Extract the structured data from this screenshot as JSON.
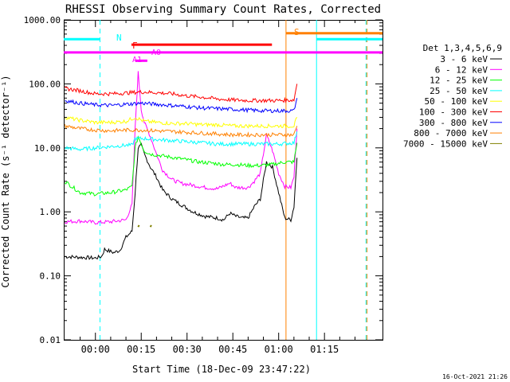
{
  "chart_data": {
    "type": "line",
    "title": "RHESSI Observing Summary Count Rates, Corrected",
    "xlabel": "Start Time (18-Dec-09 23:47:22)",
    "ylabel": "Corrected Count Rate (s⁻¹ detector⁻¹)",
    "scale_y": "log",
    "ylim": [
      0.01,
      1000
    ],
    "xlim_min": [
      -10.37,
      94
    ],
    "x_ticks": [
      {
        "m": 0,
        "label": "00:00"
      },
      {
        "m": 15,
        "label": "00:15"
      },
      {
        "m": 30,
        "label": "00:30"
      },
      {
        "m": 45,
        "label": "00:45"
      },
      {
        "m": 60,
        "label": "01:00"
      },
      {
        "m": 75,
        "label": "01:15"
      }
    ],
    "y_ticks": [
      {
        "v": 1000,
        "label": "1000.00"
      },
      {
        "v": 100,
        "label": "100.00"
      },
      {
        "v": 10,
        "label": "10.00"
      },
      {
        "v": 1,
        "label": "1.00"
      },
      {
        "v": 0.1,
        "label": "0.10"
      },
      {
        "v": 0.01,
        "label": "0.01"
      }
    ],
    "legend_title": "Det 1,3,4,5,6,9",
    "legend_position": "right",
    "series": [
      {
        "name": "3 - 6 keV",
        "color": "#000000",
        "points": [
          [
            -10,
            0.2
          ],
          [
            0,
            0.19
          ],
          [
            2,
            0.2
          ],
          [
            3,
            0.26
          ],
          [
            6,
            0.23
          ],
          [
            8,
            0.25
          ],
          [
            10,
            0.4
          ],
          [
            12,
            0.5
          ],
          [
            13,
            2
          ],
          [
            14,
            10
          ],
          [
            15,
            11
          ],
          [
            16,
            8
          ],
          [
            18,
            5
          ],
          [
            20,
            3.5
          ],
          [
            22,
            2.2
          ],
          [
            25,
            1.6
          ],
          [
            28,
            1.3
          ],
          [
            32,
            1.0
          ],
          [
            36,
            0.85
          ],
          [
            40,
            0.8
          ],
          [
            42,
            0.75
          ],
          [
            44,
            0.95
          ],
          [
            46,
            0.85
          ],
          [
            48,
            0.8
          ],
          [
            50,
            0.8
          ],
          [
            52,
            1.2
          ],
          [
            54,
            1.6
          ],
          [
            56,
            6
          ],
          [
            58,
            5
          ],
          [
            60,
            2
          ],
          [
            62,
            0.8
          ],
          [
            64,
            0.75
          ],
          [
            65,
            1.2
          ],
          [
            66,
            7
          ]
        ]
      },
      {
        "name": "6 - 12 keV",
        "color": "#ff00ff",
        "points": [
          [
            -10,
            0.7
          ],
          [
            -5,
            0.72
          ],
          [
            0,
            0.68
          ],
          [
            5,
            0.7
          ],
          [
            10,
            0.75
          ],
          [
            12,
            1.3
          ],
          [
            13,
            20
          ],
          [
            14,
            150
          ],
          [
            15,
            40
          ],
          [
            16,
            25
          ],
          [
            18,
            15
          ],
          [
            20,
            8
          ],
          [
            22,
            4.5
          ],
          [
            25,
            3.2
          ],
          [
            28,
            2.8
          ],
          [
            32,
            2.6
          ],
          [
            36,
            2.4
          ],
          [
            40,
            2.3
          ],
          [
            44,
            2.8
          ],
          [
            46,
            2.4
          ],
          [
            50,
            2.4
          ],
          [
            52,
            3
          ],
          [
            54,
            4
          ],
          [
            56,
            16
          ],
          [
            58,
            9
          ],
          [
            60,
            4
          ],
          [
            62,
            2.5
          ],
          [
            64,
            2.4
          ],
          [
            65,
            3.5
          ],
          [
            66,
            20
          ]
        ]
      },
      {
        "name": "12 - 25 keV",
        "color": "#00ff00",
        "points": [
          [
            -10,
            3
          ],
          [
            -5,
            2
          ],
          [
            0,
            1.9
          ],
          [
            5,
            2
          ],
          [
            10,
            2.2
          ],
          [
            12,
            2.5
          ],
          [
            13,
            10
          ],
          [
            14,
            15
          ],
          [
            16,
            9
          ],
          [
            18,
            8
          ],
          [
            22,
            7.5
          ],
          [
            26,
            7
          ],
          [
            30,
            6.5
          ],
          [
            34,
            6
          ],
          [
            38,
            5.8
          ],
          [
            42,
            5.5
          ],
          [
            46,
            5.5
          ],
          [
            50,
            5.3
          ],
          [
            54,
            5.3
          ],
          [
            58,
            5.5
          ],
          [
            62,
            6
          ],
          [
            65,
            6
          ],
          [
            66,
            12
          ]
        ]
      },
      {
        "name": "25 - 50 keV",
        "color": "#00ffff",
        "points": [
          [
            -10,
            10
          ],
          [
            -5,
            9.5
          ],
          [
            0,
            10
          ],
          [
            5,
            10.5
          ],
          [
            10,
            11
          ],
          [
            12,
            11
          ],
          [
            13,
            14
          ],
          [
            16,
            14
          ],
          [
            20,
            13.5
          ],
          [
            25,
            13
          ],
          [
            30,
            12.5
          ],
          [
            35,
            12
          ],
          [
            40,
            11.5
          ],
          [
            45,
            11.5
          ],
          [
            50,
            11.5
          ],
          [
            55,
            11.5
          ],
          [
            60,
            11.5
          ],
          [
            65,
            12
          ],
          [
            66,
            18
          ]
        ]
      },
      {
        "name": "50 - 100 keV",
        "color": "#ffff00",
        "points": [
          [
            -10,
            30
          ],
          [
            -5,
            27
          ],
          [
            0,
            25
          ],
          [
            5,
            25
          ],
          [
            10,
            26
          ],
          [
            13,
            30
          ],
          [
            16,
            26
          ],
          [
            20,
            25
          ],
          [
            25,
            24
          ],
          [
            30,
            24
          ],
          [
            35,
            23
          ],
          [
            40,
            23
          ],
          [
            45,
            22
          ],
          [
            50,
            22
          ],
          [
            55,
            22
          ],
          [
            60,
            22
          ],
          [
            65,
            22
          ],
          [
            66,
            30
          ]
        ]
      },
      {
        "name": "100 - 300 keV",
        "color": "#ff0000",
        "points": [
          [
            -10,
            85
          ],
          [
            -5,
            78
          ],
          [
            0,
            70
          ],
          [
            5,
            70
          ],
          [
            10,
            72
          ],
          [
            15,
            75
          ],
          [
            20,
            73
          ],
          [
            25,
            70
          ],
          [
            30,
            65
          ],
          [
            35,
            62
          ],
          [
            40,
            58
          ],
          [
            45,
            56
          ],
          [
            50,
            55
          ],
          [
            55,
            55
          ],
          [
            60,
            55
          ],
          [
            65,
            56
          ],
          [
            66,
            100
          ]
        ]
      },
      {
        "name": "300 - 800 keV",
        "color": "#0000ff",
        "points": [
          [
            -10,
            55
          ],
          [
            -5,
            50
          ],
          [
            0,
            47
          ],
          [
            5,
            46
          ],
          [
            10,
            48
          ],
          [
            15,
            50
          ],
          [
            20,
            48
          ],
          [
            25,
            46
          ],
          [
            30,
            44
          ],
          [
            35,
            42
          ],
          [
            40,
            41
          ],
          [
            45,
            40
          ],
          [
            50,
            39
          ],
          [
            55,
            38
          ],
          [
            60,
            38
          ],
          [
            65,
            38
          ],
          [
            66,
            60
          ]
        ]
      },
      {
        "name": "800 - 7000 keV",
        "color": "#ff8000",
        "points": [
          [
            -10,
            22
          ],
          [
            -5,
            20
          ],
          [
            0,
            19
          ],
          [
            5,
            18.5
          ],
          [
            10,
            19
          ],
          [
            15,
            19
          ],
          [
            20,
            18.5
          ],
          [
            25,
            18
          ],
          [
            30,
            17.5
          ],
          [
            35,
            17
          ],
          [
            40,
            16.5
          ],
          [
            45,
            16
          ],
          [
            50,
            16
          ],
          [
            55,
            16
          ],
          [
            60,
            16
          ],
          [
            65,
            16
          ],
          [
            66,
            22
          ]
        ]
      },
      {
        "name": "7000 - 15000 keV",
        "color": "#808000",
        "points": [
          [
            14,
            0.58
          ],
          [
            14.3,
            0.62
          ],
          [
            18,
            0.58
          ],
          [
            18.3,
            0.62
          ]
        ]
      }
    ],
    "annotations": {
      "N": {
        "text": "N",
        "color": "#00ffff"
      },
      "F": {
        "text": "F",
        "color": "#ff0000"
      },
      "S": {
        "text": "S",
        "color": "#ff8000"
      },
      "A0": {
        "text": "A0",
        "color": "#ff00ff"
      },
      "A1": {
        "text": "A1",
        "color": "#ff00ff"
      }
    },
    "markers": {
      "n_top": {
        "m": [
          -10.37,
          1.5
        ],
        "y": 500,
        "color": "#00ffff"
      },
      "n_top2": {
        "m": [
          72.4,
          94
        ],
        "y": 500,
        "color": "#00ffff"
      },
      "s_top": {
        "m": [
          62.4,
          94
        ],
        "y": 620,
        "color": "#ff8000"
      },
      "a0_bar": {
        "m": [
          -10.37,
          94
        ],
        "y": 310,
        "color": "#ff00ff"
      },
      "f_bar": {
        "m": [
          11.8,
          57.8
        ],
        "y": 410,
        "color": "#ff0000"
      },
      "a1_bar": {
        "m": [
          13,
          17
        ],
        "y": 230,
        "color": "#ff00ff"
      },
      "vlines": [
        {
          "m": 1.5,
          "color": "#00ffff",
          "dashed": true
        },
        {
          "m": 62.4,
          "color": "#ff8000",
          "dashed": false
        },
        {
          "m": 72.4,
          "color": "#00ffff",
          "dashed": false
        },
        {
          "m": 88.6,
          "color": "#00ffff",
          "dashed": true
        },
        {
          "m": 88.9,
          "color": "#ff8000",
          "dashed": true
        }
      ]
    }
  },
  "footer_date": "16-Oct-2021 21:26"
}
